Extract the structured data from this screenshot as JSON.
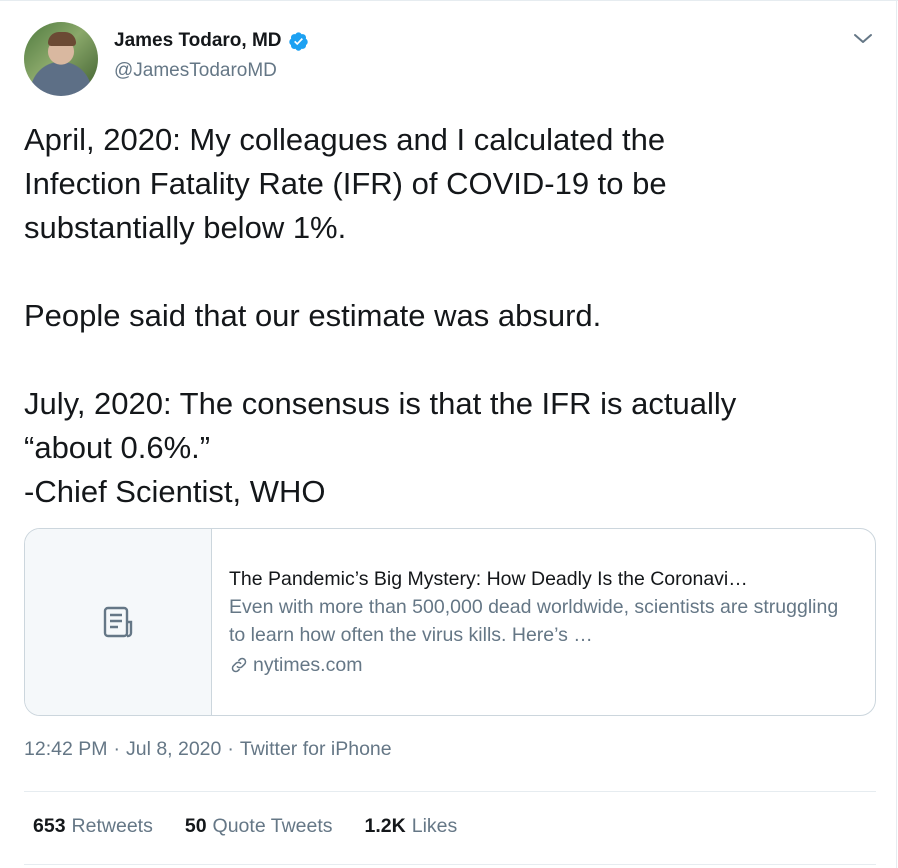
{
  "author": {
    "display_name": "James Todaro, MD",
    "handle": "@JamesTodaroMD",
    "verified_icon": "verified-badge-icon",
    "accent_color": "#1da1f2"
  },
  "tweet": {
    "text": "April, 2020: My colleagues and I calculated the\nInfection Fatality Rate (IFR) of COVID-19 to be\nsubstantially below 1%.\n\nPeople said that our estimate was absurd.\n\nJuly, 2020: The consensus is that the IFR is actually\n“about 0.6%.”\n-Chief Scientist, WHO"
  },
  "card": {
    "title": "The Pandemic’s Big Mystery: How Deadly Is the Coronavi…",
    "description": "Even with more than 500,000 dead worldwide, scientists are struggling to learn how often the virus kills. Here’s …",
    "domain": "nytimes.com",
    "media_icon": "article-icon",
    "link_icon": "link-icon"
  },
  "meta": {
    "time": "12:42 PM",
    "date": "Jul 8, 2020",
    "source": "Twitter for iPhone",
    "separator": "·"
  },
  "stats": {
    "retweets_count": "653",
    "retweets_label": "Retweets",
    "quotes_count": "50",
    "quotes_label": "Quote Tweets",
    "likes_count": "1.2K",
    "likes_label": "Likes"
  }
}
